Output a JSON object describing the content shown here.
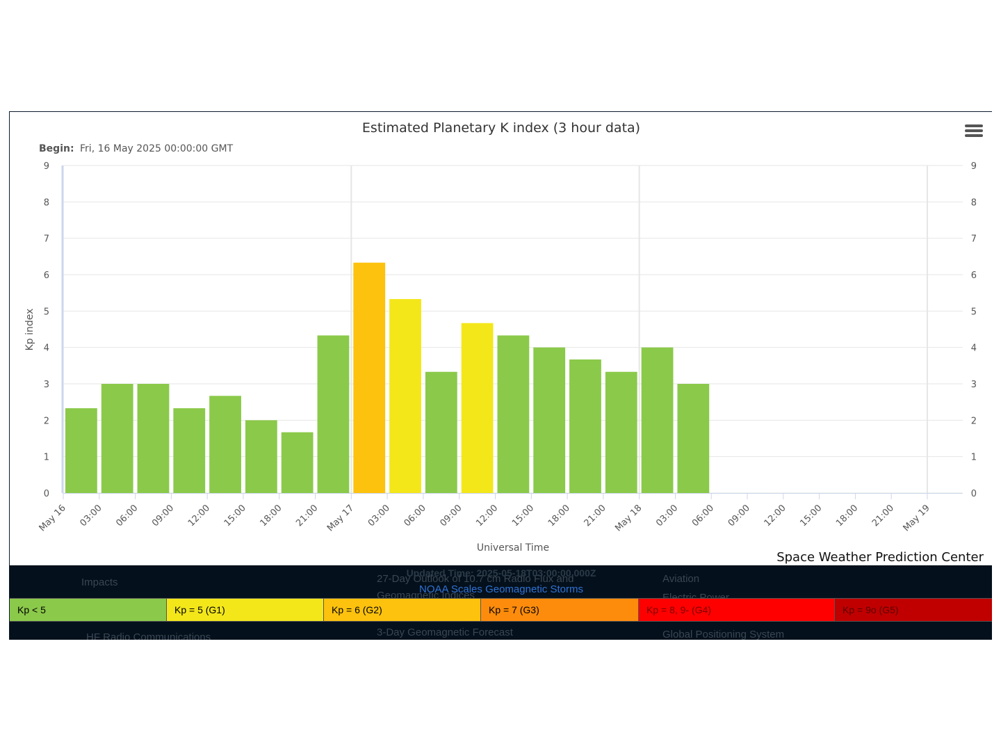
{
  "chart_data": {
    "type": "bar",
    "title": "Estimated Planetary K index (3 hour data)",
    "subtitle_label": "Begin:",
    "subtitle_value": "Fri, 16 May 2025 00:00:00 GMT",
    "xlabel": "Universal Time",
    "ylabel": "Kp index",
    "ylim": [
      0,
      9
    ],
    "yticks": [
      0,
      1,
      2,
      3,
      4,
      5,
      6,
      7,
      8,
      9
    ],
    "x_tick_labels": [
      "May 16",
      "03:00",
      "06:00",
      "09:00",
      "12:00",
      "15:00",
      "18:00",
      "21:00",
      "May 17",
      "03:00",
      "06:00",
      "09:00",
      "12:00",
      "15:00",
      "18:00",
      "21:00",
      "May 18",
      "03:00",
      "06:00",
      "09:00",
      "12:00",
      "15:00",
      "18:00",
      "21:00",
      "May 19"
    ],
    "bars": [
      {
        "time": "2025-05-16 00:00",
        "kp": 2.33
      },
      {
        "time": "2025-05-16 03:00",
        "kp": 3.0
      },
      {
        "time": "2025-05-16 06:00",
        "kp": 3.0
      },
      {
        "time": "2025-05-16 09:00",
        "kp": 2.33
      },
      {
        "time": "2025-05-16 12:00",
        "kp": 2.67
      },
      {
        "time": "2025-05-16 15:00",
        "kp": 2.0
      },
      {
        "time": "2025-05-16 18:00",
        "kp": 1.67
      },
      {
        "time": "2025-05-16 21:00",
        "kp": 4.33
      },
      {
        "time": "2025-05-17 00:00",
        "kp": 6.33
      },
      {
        "time": "2025-05-17 03:00",
        "kp": 5.33
      },
      {
        "time": "2025-05-17 06:00",
        "kp": 3.33
      },
      {
        "time": "2025-05-17 09:00",
        "kp": 4.67
      },
      {
        "time": "2025-05-17 12:00",
        "kp": 4.33
      },
      {
        "time": "2025-05-17 15:00",
        "kp": 4.0
      },
      {
        "time": "2025-05-17 18:00",
        "kp": 3.67
      },
      {
        "time": "2025-05-17 21:00",
        "kp": 3.33
      },
      {
        "time": "2025-05-18 00:00",
        "kp": 4.0
      },
      {
        "time": "2025-05-18 03:00",
        "kp": 3.0
      }
    ],
    "grid": true,
    "legend": "none",
    "credit": "Space Weather Prediction Center"
  },
  "colors": {
    "kp_below_5": "#8bc94a",
    "kp_5_g1": "#f3e71a",
    "kp_6_g2": "#fdc20d",
    "kp_7_g3": "#fe8c0c",
    "kp_8_g4": "#fe0000",
    "kp_9_g5": "#c00000"
  },
  "footer": {
    "updated_time": "Updated Time: 2025-05-18T03:00:00.000Z",
    "noaa_link": "NOAA Scales Geomagnetic Storms",
    "legend": [
      {
        "label": "Kp < 5",
        "color": "#8bc94a",
        "text_color": "#000000"
      },
      {
        "label": "Kp = 5 (G1)",
        "color": "#f3e71a",
        "text_color": "#000000"
      },
      {
        "label": "Kp = 6 (G2)",
        "color": "#fdc20d",
        "text_color": "#000000"
      },
      {
        "label": "Kp = 7 (G3)",
        "color": "#fe8c0c",
        "text_color": "#000000"
      },
      {
        "label": "Kp = 8, 9- (G4)",
        "color": "#fe0000",
        "text_color": "#7a0000"
      },
      {
        "label": "Kp = 9o (G5)",
        "color": "#c00000",
        "text_color": "#5a0000"
      }
    ],
    "background_links": [
      "Impacts",
      "HF Radio Communications",
      "27-Day Outlook of 10.7 cm Radio Flux and",
      "Geomagnetic Indices",
      "3-Day Geomagnetic Forecast",
      "Aviation",
      "Electric Power",
      "Global Positioning System"
    ]
  }
}
